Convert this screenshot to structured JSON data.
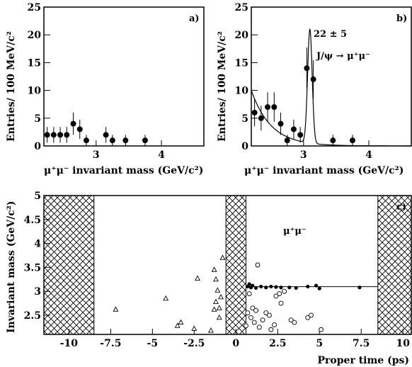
{
  "chart_data": [
    {
      "panel_label": "a)",
      "type": "scatter",
      "xlabel": "μ⁺μ⁻ invariant mass  (GeV/c²)",
      "ylabel": "Entries/ 100 MeV/c²",
      "xlim": [
        2.2,
        4.65
      ],
      "ylim": [
        0,
        25
      ],
      "x_ticks": [
        "3",
        "4"
      ],
      "y_ticks": [
        "0",
        "5",
        "10",
        "15",
        "20",
        "25"
      ],
      "points": [
        {
          "x": 2.25,
          "y": 2
        },
        {
          "x": 2.35,
          "y": 2
        },
        {
          "x": 2.45,
          "y": 2
        },
        {
          "x": 2.55,
          "y": 2
        },
        {
          "x": 2.65,
          "y": 4
        },
        {
          "x": 2.75,
          "y": 3
        },
        {
          "x": 2.85,
          "y": 1
        },
        {
          "x": 3.15,
          "y": 2
        },
        {
          "x": 3.25,
          "y": 1
        },
        {
          "x": 3.45,
          "y": 1
        },
        {
          "x": 3.75,
          "y": 1
        }
      ]
    },
    {
      "panel_label": "b)",
      "type": "scatter",
      "xlabel": "μ⁺μ⁻ invariant mass  (GeV/c²)",
      "ylabel": "Entries/ 100 MeV/c²",
      "xlim": [
        2.2,
        4.65
      ],
      "ylim": [
        0,
        25
      ],
      "x_ticks": [
        "3",
        "4"
      ],
      "y_ticks": [
        "0",
        "5",
        "10",
        "15",
        "20",
        "25"
      ],
      "annotation_yield": "22 ± 5",
      "annotation_decay": "J/ψ → μ⁺μ⁻",
      "points": [
        {
          "x": 2.25,
          "y": 6
        },
        {
          "x": 2.35,
          "y": 5
        },
        {
          "x": 2.45,
          "y": 7
        },
        {
          "x": 2.55,
          "y": 7
        },
        {
          "x": 2.65,
          "y": 4
        },
        {
          "x": 2.75,
          "y": 1
        },
        {
          "x": 2.85,
          "y": 3
        },
        {
          "x": 2.95,
          "y": 2
        },
        {
          "x": 3.05,
          "y": 14
        },
        {
          "x": 3.15,
          "y": 12
        },
        {
          "x": 3.45,
          "y": 1
        },
        {
          "x": 3.75,
          "y": 1
        }
      ],
      "fit_curve": {
        "background_start": 10,
        "background_decay_per_gev": 3.3,
        "peak_mean": 3.097,
        "peak_height": 20.5,
        "peak_sigma": 0.035
      }
    },
    {
      "panel_label": "c)",
      "type": "scatter",
      "xlabel": "Proper time  (ps)",
      "ylabel": "Invariant mass  (GeV/c²)",
      "annotation": "μ⁺μ⁻",
      "xlim": [
        -11.5,
        10.5
      ],
      "ylim": [
        2.1,
        5.0
      ],
      "x_ticks": [
        "-10",
        "-7.5",
        "-5",
        "-2.5",
        "0",
        "2.5",
        "5",
        "7.5",
        "10"
      ],
      "y_ticks": [
        "2.5",
        "3",
        "3.5",
        "4",
        "4.5",
        "5"
      ],
      "excluded_regions": [
        [
          -11.5,
          -8.5
        ],
        [
          -0.6,
          0.6
        ],
        [
          8.5,
          10.5
        ]
      ],
      "jpsi_mass_line": 3.097,
      "series": [
        {
          "marker": "open-triangle",
          "points": [
            {
              "x": -7.2,
              "y": 2.62
            },
            {
              "x": -3.3,
              "y": 2.35
            },
            {
              "x": -3.5,
              "y": 2.28
            },
            {
              "x": -4.2,
              "y": 2.85
            },
            {
              "x": -2.3,
              "y": 3.27
            },
            {
              "x": -2.5,
              "y": 2.22
            },
            {
              "x": -1.5,
              "y": 2.18
            },
            {
              "x": -1.3,
              "y": 3.45
            },
            {
              "x": -1.2,
              "y": 3.25
            },
            {
              "x": -1.1,
              "y": 3.02
            },
            {
              "x": -1.2,
              "y": 2.78
            },
            {
              "x": -1.0,
              "y": 2.65
            },
            {
              "x": -1.3,
              "y": 2.62
            },
            {
              "x": -0.9,
              "y": 2.88
            },
            {
              "x": -1.0,
              "y": 2.45
            },
            {
              "x": -0.8,
              "y": 3.7
            }
          ]
        },
        {
          "marker": "filled-circle",
          "points": [
            {
              "x": 0.7,
              "y": 3.1
            },
            {
              "x": 0.8,
              "y": 3.15
            },
            {
              "x": 0.9,
              "y": 3.08
            },
            {
              "x": 1.0,
              "y": 3.12
            },
            {
              "x": 1.2,
              "y": 3.07
            },
            {
              "x": 1.5,
              "y": 3.1
            },
            {
              "x": 1.8,
              "y": 3.08
            },
            {
              "x": 2.1,
              "y": 3.1
            },
            {
              "x": 2.4,
              "y": 3.09
            },
            {
              "x": 2.7,
              "y": 3.08
            },
            {
              "x": 3.2,
              "y": 3.08
            },
            {
              "x": 3.6,
              "y": 3.07
            },
            {
              "x": 4.3,
              "y": 3.1
            },
            {
              "x": 4.8,
              "y": 3.12
            },
            {
              "x": 5.0,
              "y": 3.06
            },
            {
              "x": 7.4,
              "y": 3.08
            }
          ]
        },
        {
          "marker": "open-circle",
          "points": [
            {
              "x": 1.3,
              "y": 3.55
            },
            {
              "x": 0.8,
              "y": 2.95
            },
            {
              "x": 0.7,
              "y": 2.55
            },
            {
              "x": 0.9,
              "y": 2.45
            },
            {
              "x": 1.1,
              "y": 2.35
            },
            {
              "x": 1.0,
              "y": 2.65
            },
            {
              "x": 1.4,
              "y": 2.25
            },
            {
              "x": 1.6,
              "y": 2.4
            },
            {
              "x": 1.8,
              "y": 2.55
            },
            {
              "x": 2.0,
              "y": 2.5
            },
            {
              "x": 2.1,
              "y": 2.2
            },
            {
              "x": 2.3,
              "y": 2.3
            },
            {
              "x": 2.4,
              "y": 2.9
            },
            {
              "x": 2.6,
              "y": 2.95
            },
            {
              "x": 2.7,
              "y": 2.75
            },
            {
              "x": 2.9,
              "y": 3.0
            },
            {
              "x": 3.3,
              "y": 2.4
            },
            {
              "x": 3.5,
              "y": 2.35
            },
            {
              "x": 4.3,
              "y": 2.45
            },
            {
              "x": 4.5,
              "y": 2.5
            },
            {
              "x": 5.1,
              "y": 2.2
            },
            {
              "x": 0.6,
              "y": 2.28
            },
            {
              "x": 1.2,
              "y": 2.6
            }
          ]
        }
      ]
    }
  ]
}
